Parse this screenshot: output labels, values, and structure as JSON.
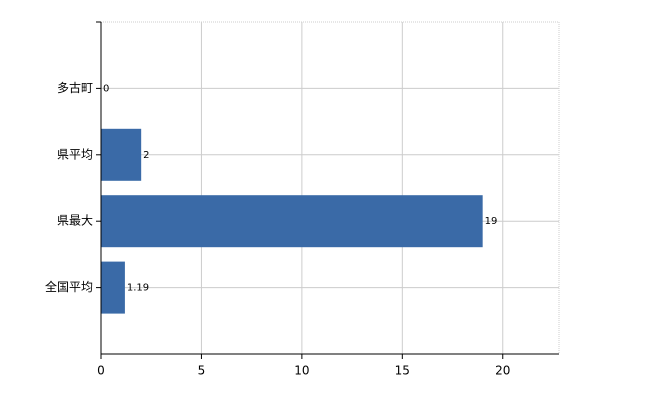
{
  "chart_data": {
    "type": "bar",
    "orientation": "horizontal",
    "categories": [
      "多古町",
      "県平均",
      "県最大",
      "全国平均"
    ],
    "values": [
      0,
      2,
      19,
      1.19
    ],
    "color": "#3a6aa7",
    "xlim": [
      0,
      22.8
    ],
    "xticks": [
      0,
      5,
      10,
      15,
      20
    ],
    "grid": true
  }
}
